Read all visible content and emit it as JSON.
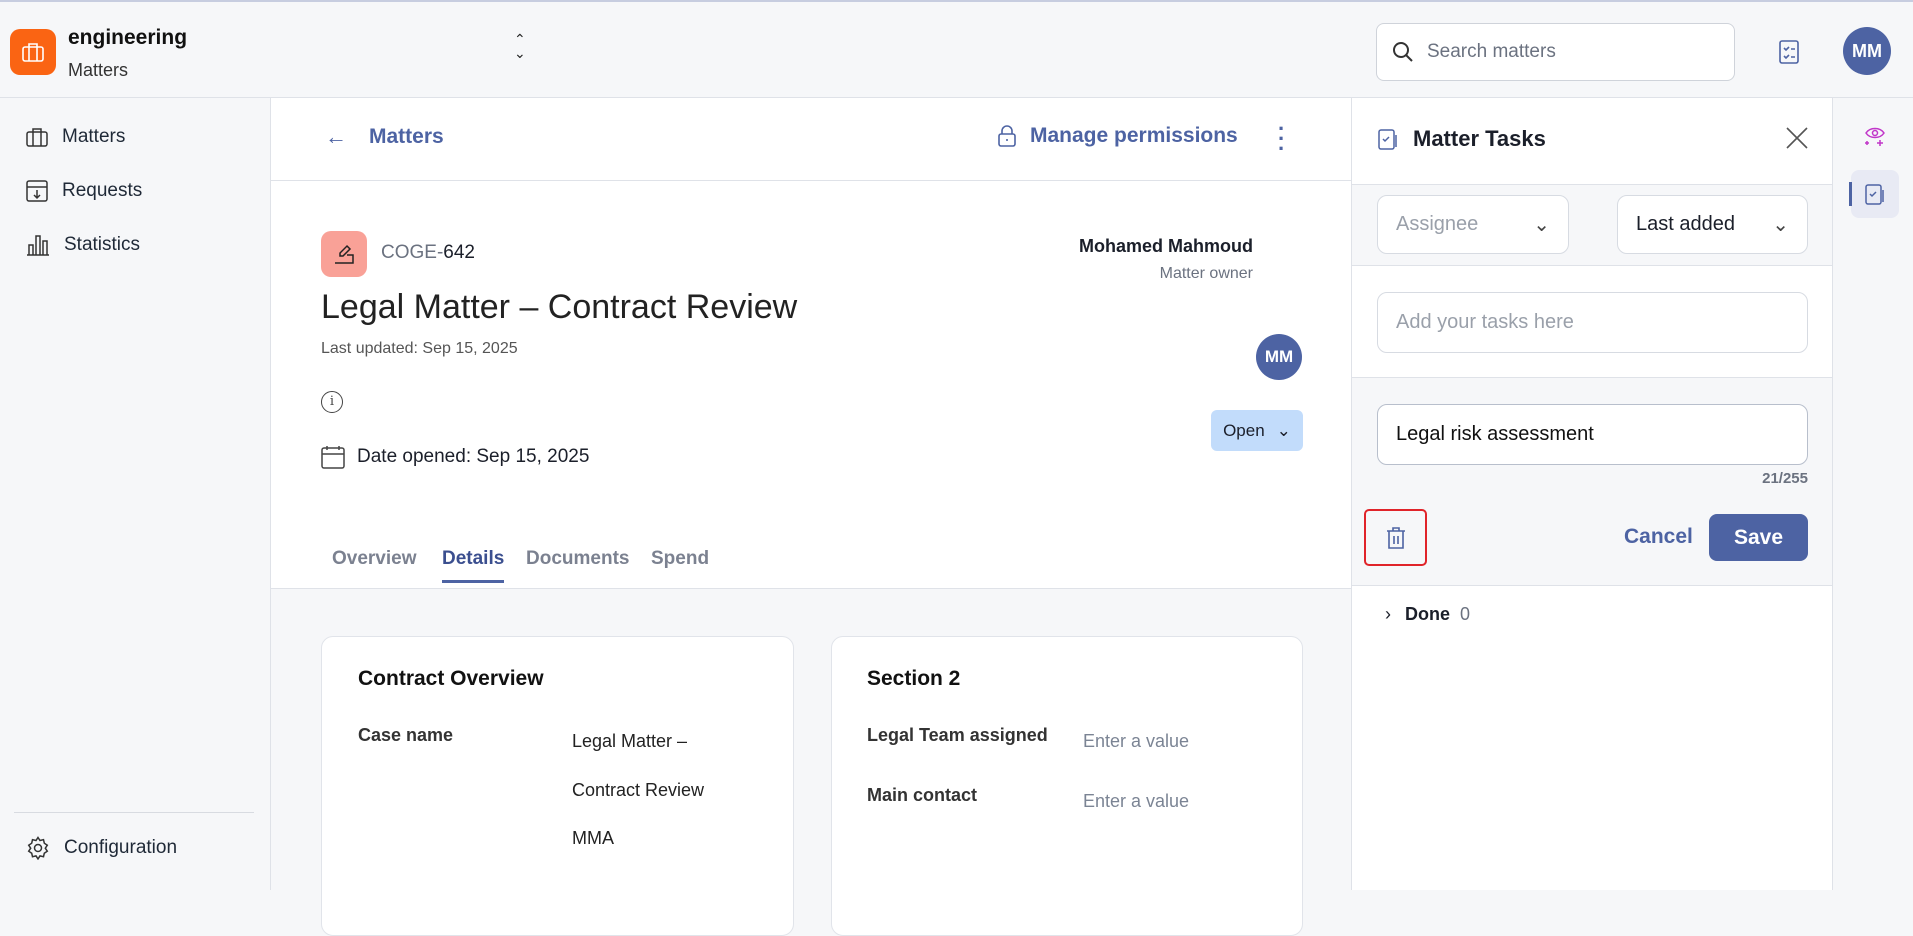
{
  "header": {
    "org_name": "engineering",
    "org_section": "Matters",
    "search_placeholder": "Search matters",
    "user_initials": "MM"
  },
  "sidebar": {
    "items": [
      {
        "label": "Matters",
        "icon": "briefcase-icon"
      },
      {
        "label": "Requests",
        "icon": "inbox-download-icon"
      },
      {
        "label": "Statistics",
        "icon": "bar-chart-icon"
      }
    ],
    "footer": {
      "label": "Configuration",
      "icon": "gear-icon"
    }
  },
  "matter": {
    "back_label": "Matters",
    "manage_permissions": "Manage permissions",
    "id_prefix": "COGE-",
    "id_number": "642",
    "title": "Legal Matter – Contract Review",
    "last_updated": "Last updated: Sep 15, 2025",
    "date_opened": "Date opened: Sep 15, 2025",
    "owner_name": "Mohamed Mahmoud",
    "owner_role": "Matter owner",
    "owner_initials": "MM",
    "status": "Open",
    "badge_color": "#f9a197"
  },
  "tabs": [
    {
      "label": "Overview"
    },
    {
      "label": "Details",
      "active": true
    },
    {
      "label": "Documents"
    },
    {
      "label": "Spend"
    }
  ],
  "cards": {
    "contract_overview": {
      "title": "Contract Overview",
      "fields": [
        {
          "label": "Case name",
          "value_lines": [
            "Legal Matter –",
            "Contract Review",
            "MMA"
          ]
        }
      ]
    },
    "section2": {
      "title": "Section 2",
      "fields": [
        {
          "label": "Legal Team assigned",
          "placeholder": "Enter a value"
        },
        {
          "label": "Main contact",
          "placeholder": "Enter a value"
        }
      ]
    }
  },
  "tasks_panel": {
    "title": "Matter Tasks",
    "assignee_placeholder": "Assignee",
    "sort_value": "Last added",
    "add_placeholder": "Add your tasks here",
    "edit_value": "Legal risk assessment",
    "char_count": "21/255",
    "cancel": "Cancel",
    "save": "Save",
    "done_label": "Done",
    "done_count": "0"
  },
  "colors": {
    "accent": "#4d63a3",
    "logo": "#fa6413",
    "status_bg": "#c2dcfb",
    "highlight": "#e0242a"
  }
}
